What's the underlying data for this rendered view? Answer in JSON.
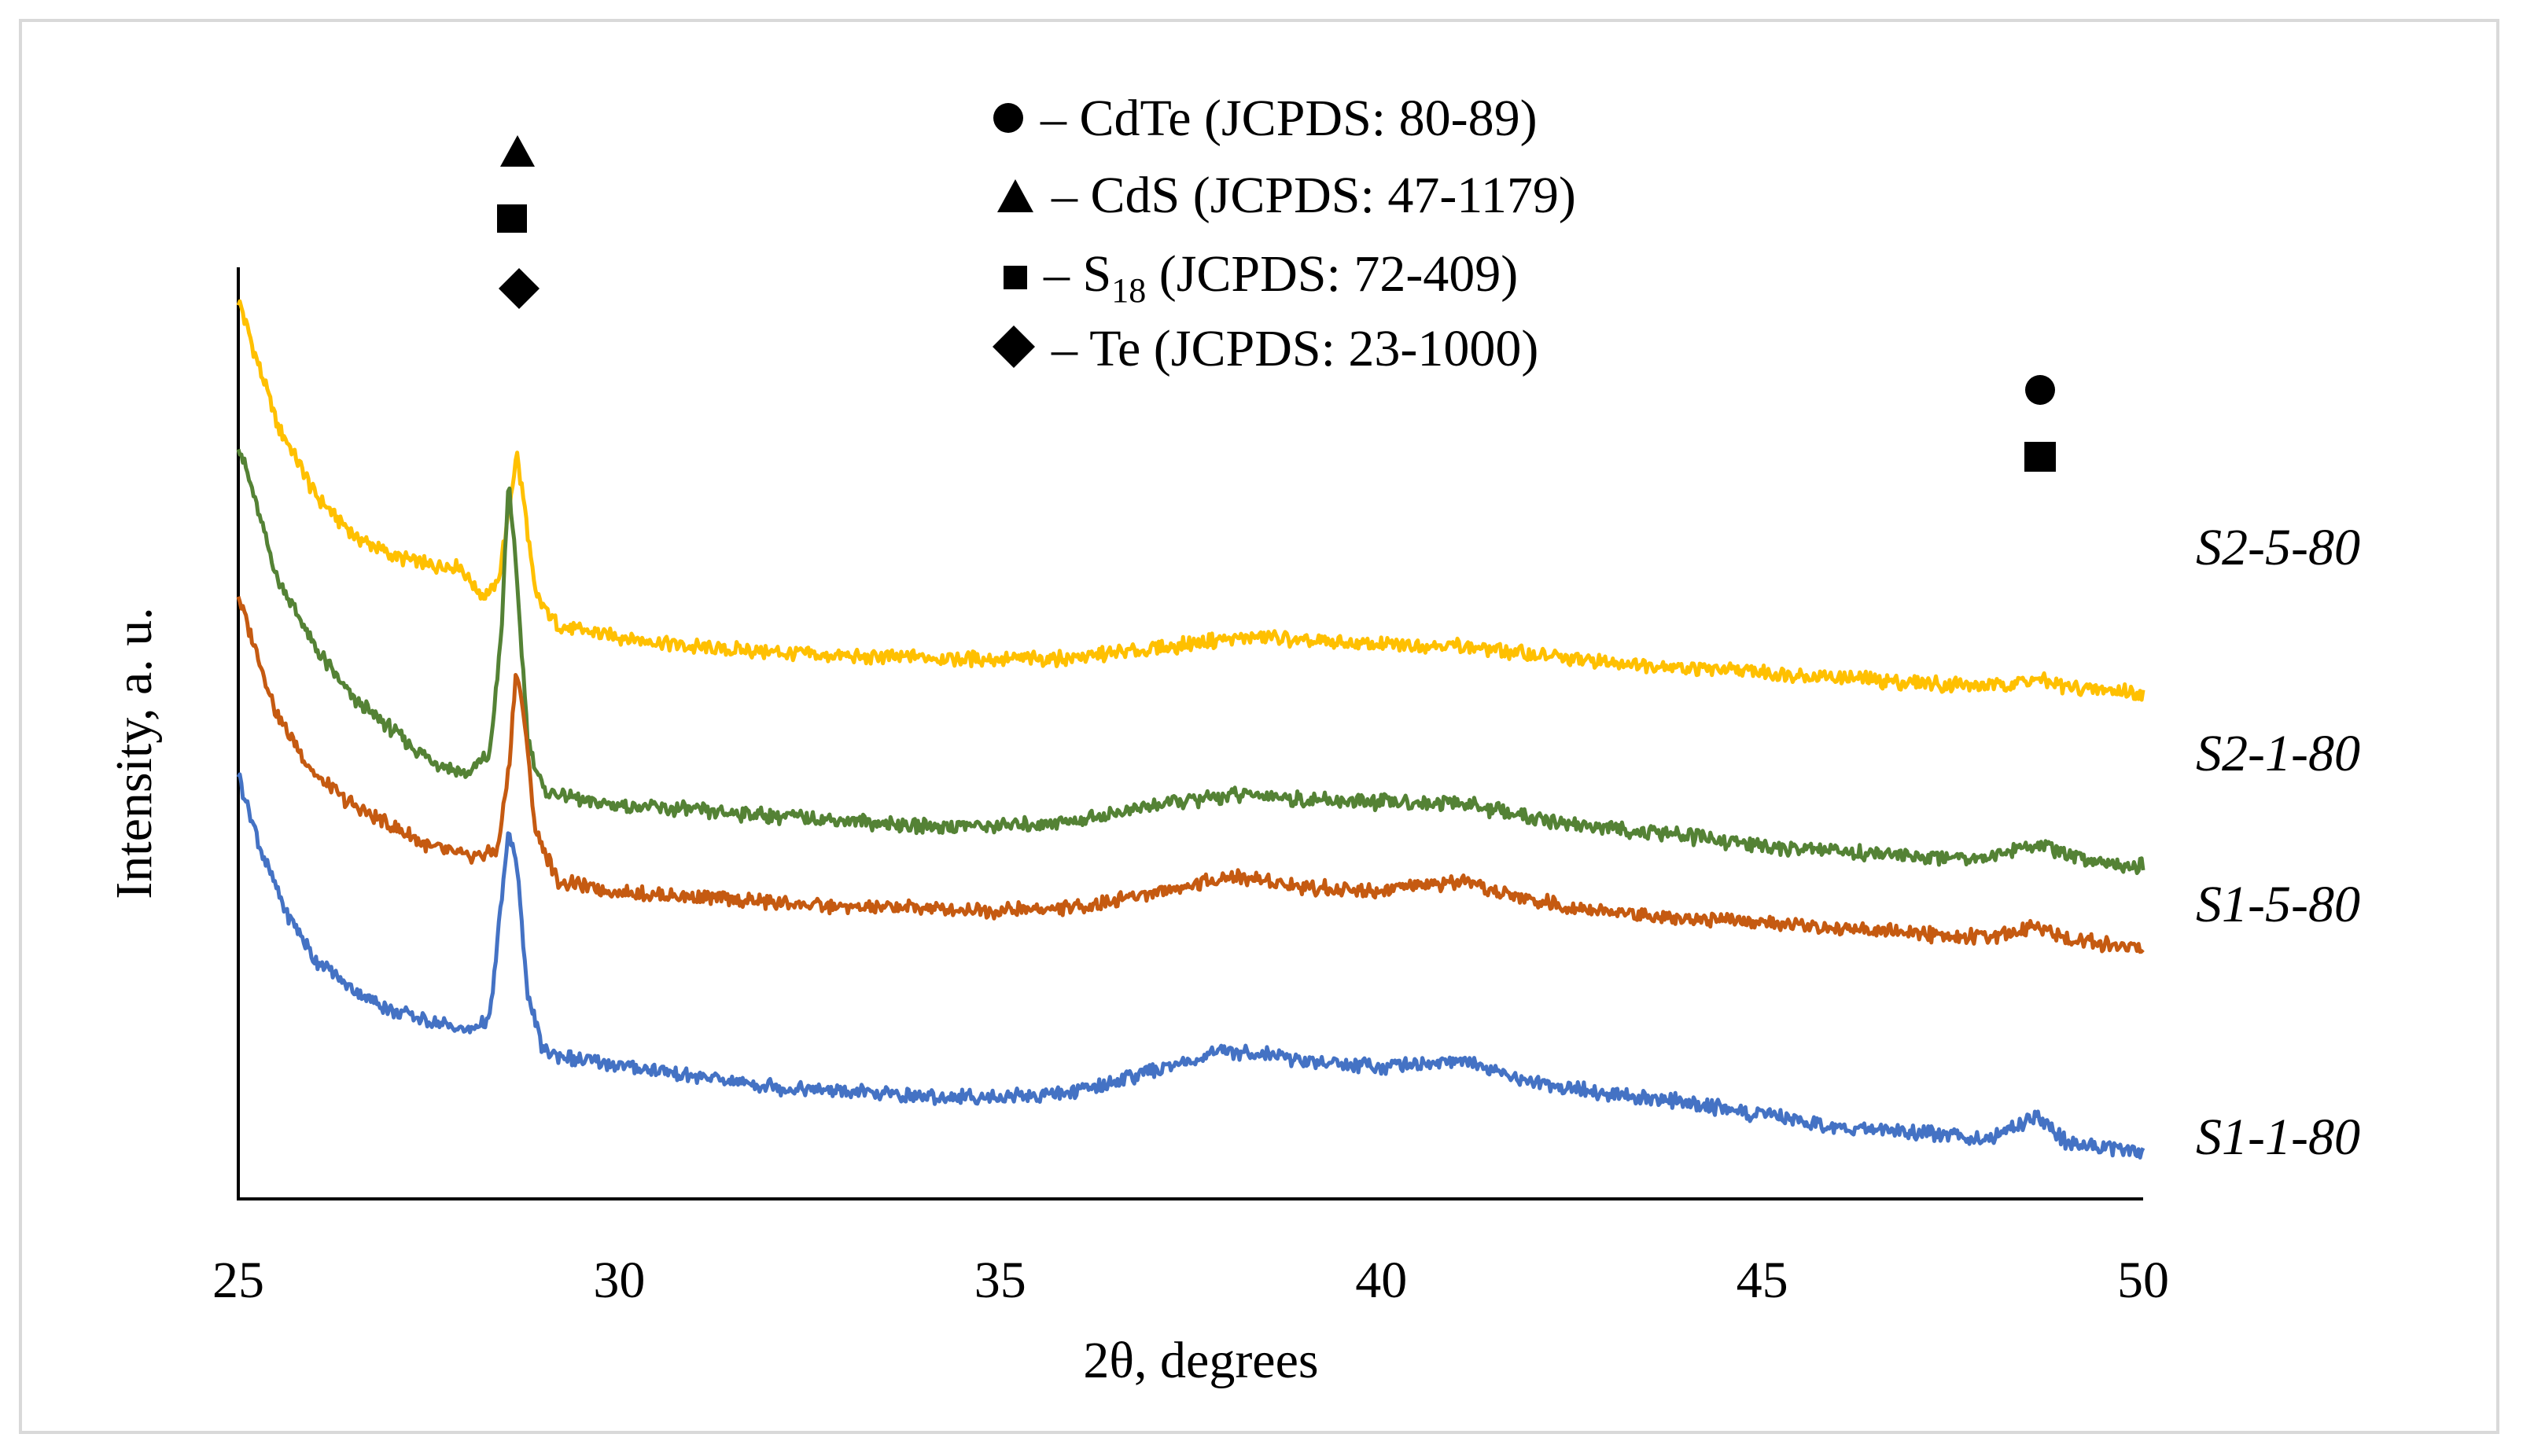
{
  "chart_data": {
    "type": "line",
    "title": "",
    "xlabel": "2θ, degrees",
    "ylabel": "Intensity, a. u.",
    "xlim": [
      25,
      50
    ],
    "xticks": [
      25,
      30,
      35,
      40,
      45,
      50
    ],
    "xtick_labels": [
      "25",
      "30",
      "35",
      "40",
      "45",
      "50"
    ],
    "y_ticks_shown": false,
    "series": [
      {
        "name": "S2-5-80",
        "color": "#FFC000",
        "points": [
          [
            25.0,
            8.8
          ],
          [
            25.5,
            7.6
          ],
          [
            26.0,
            6.9
          ],
          [
            26.5,
            6.5
          ],
          [
            27.0,
            6.3
          ],
          [
            27.5,
            6.2
          ],
          [
            27.9,
            6.2
          ],
          [
            28.2,
            5.9
          ],
          [
            28.4,
            6.0
          ],
          [
            28.55,
            6.7
          ],
          [
            28.65,
            7.3
          ],
          [
            28.75,
            6.8
          ],
          [
            28.9,
            5.9
          ],
          [
            29.2,
            5.6
          ],
          [
            30.0,
            5.5
          ],
          [
            31.0,
            5.4
          ],
          [
            32.0,
            5.35
          ],
          [
            33.0,
            5.3
          ],
          [
            34.0,
            5.3
          ],
          [
            35.0,
            5.28
          ],
          [
            36.0,
            5.3
          ],
          [
            37.0,
            5.38
          ],
          [
            38.0,
            5.48
          ],
          [
            38.5,
            5.5
          ],
          [
            39.0,
            5.45
          ],
          [
            40.0,
            5.42
          ],
          [
            41.0,
            5.42
          ],
          [
            42.0,
            5.32
          ],
          [
            43.0,
            5.25
          ],
          [
            44.0,
            5.2
          ],
          [
            45.0,
            5.15
          ],
          [
            46.0,
            5.1
          ],
          [
            47.0,
            5.05
          ],
          [
            48.0,
            5.02
          ],
          [
            48.6,
            5.08
          ],
          [
            49.0,
            5.0
          ],
          [
            50.0,
            4.95
          ]
        ]
      },
      {
        "name": "S2-1-80",
        "color": "#548235",
        "points": [
          [
            25.0,
            7.4
          ],
          [
            25.5,
            6.1
          ],
          [
            26.0,
            5.4
          ],
          [
            26.5,
            4.9
          ],
          [
            27.0,
            4.6
          ],
          [
            27.5,
            4.3
          ],
          [
            28.0,
            4.15
          ],
          [
            28.3,
            4.35
          ],
          [
            28.45,
            5.5
          ],
          [
            28.55,
            7.05
          ],
          [
            28.65,
            6.1
          ],
          [
            28.8,
            4.5
          ],
          [
            29.0,
            4.0
          ],
          [
            29.5,
            3.9
          ],
          [
            30.0,
            3.85
          ],
          [
            31.0,
            3.8
          ],
          [
            32.0,
            3.75
          ],
          [
            33.0,
            3.7
          ],
          [
            34.0,
            3.65
          ],
          [
            35.0,
            3.65
          ],
          [
            36.0,
            3.7
          ],
          [
            37.0,
            3.85
          ],
          [
            38.0,
            3.95
          ],
          [
            38.5,
            3.95
          ],
          [
            39.0,
            3.9
          ],
          [
            40.0,
            3.88
          ],
          [
            41.0,
            3.88
          ],
          [
            42.0,
            3.72
          ],
          [
            43.0,
            3.62
          ],
          [
            44.0,
            3.55
          ],
          [
            45.0,
            3.45
          ],
          [
            46.0,
            3.4
          ],
          [
            47.0,
            3.35
          ],
          [
            48.0,
            3.35
          ],
          [
            48.6,
            3.48
          ],
          [
            49.0,
            3.35
          ],
          [
            50.0,
            3.25
          ]
        ]
      },
      {
        "name": "S1-5-80",
        "color": "#C55A11",
        "points": [
          [
            25.0,
            5.9
          ],
          [
            25.5,
            4.75
          ],
          [
            26.0,
            4.15
          ],
          [
            26.5,
            3.85
          ],
          [
            27.0,
            3.65
          ],
          [
            27.5,
            3.45
          ],
          [
            28.0,
            3.35
          ],
          [
            28.4,
            3.4
          ],
          [
            28.55,
            4.2
          ],
          [
            28.65,
            5.2
          ],
          [
            28.75,
            4.7
          ],
          [
            28.9,
            3.6
          ],
          [
            29.2,
            3.1
          ],
          [
            30.0,
            3.0
          ],
          [
            31.0,
            2.95
          ],
          [
            32.0,
            2.9
          ],
          [
            33.0,
            2.85
          ],
          [
            34.0,
            2.85
          ],
          [
            35.0,
            2.82
          ],
          [
            36.0,
            2.85
          ],
          [
            37.0,
            3.0
          ],
          [
            38.0,
            3.15
          ],
          [
            38.5,
            3.12
          ],
          [
            39.0,
            3.05
          ],
          [
            40.0,
            3.02
          ],
          [
            41.0,
            3.1
          ],
          [
            42.0,
            2.92
          ],
          [
            43.0,
            2.8
          ],
          [
            44.0,
            2.75
          ],
          [
            45.0,
            2.7
          ],
          [
            46.0,
            2.65
          ],
          [
            47.0,
            2.6
          ],
          [
            48.0,
            2.55
          ],
          [
            48.6,
            2.68
          ],
          [
            49.0,
            2.55
          ],
          [
            50.0,
            2.45
          ]
        ]
      },
      {
        "name": "S1-1-80",
        "color": "#4472C4",
        "points": [
          [
            25.0,
            4.15
          ],
          [
            25.3,
            3.4
          ],
          [
            25.6,
            2.85
          ],
          [
            26.0,
            2.35
          ],
          [
            26.5,
            2.05
          ],
          [
            27.0,
            1.85
          ],
          [
            27.5,
            1.75
          ],
          [
            28.0,
            1.65
          ],
          [
            28.3,
            1.75
          ],
          [
            28.45,
            2.9
          ],
          [
            28.55,
            3.6
          ],
          [
            28.65,
            3.3
          ],
          [
            28.8,
            2.0
          ],
          [
            29.0,
            1.45
          ],
          [
            29.5,
            1.35
          ],
          [
            30.0,
            1.3
          ],
          [
            31.0,
            1.2
          ],
          [
            32.0,
            1.1
          ],
          [
            33.0,
            1.05
          ],
          [
            34.0,
            1.0
          ],
          [
            35.0,
            1.0
          ],
          [
            36.0,
            1.05
          ],
          [
            37.0,
            1.25
          ],
          [
            38.0,
            1.45
          ],
          [
            38.5,
            1.42
          ],
          [
            39.0,
            1.35
          ],
          [
            40.0,
            1.3
          ],
          [
            41.0,
            1.35
          ],
          [
            42.0,
            1.15
          ],
          [
            43.0,
            1.02
          ],
          [
            44.0,
            0.95
          ],
          [
            45.0,
            0.82
          ],
          [
            46.0,
            0.7
          ],
          [
            47.0,
            0.65
          ],
          [
            48.0,
            0.6
          ],
          [
            48.6,
            0.82
          ],
          [
            49.0,
            0.55
          ],
          [
            50.0,
            0.45
          ]
        ]
      }
    ],
    "series_labels": [
      "S2-5-80",
      "S2-1-80",
      "S1-5-80",
      "S1-1-80"
    ],
    "peak_markers": [
      {
        "x": 28.6,
        "symbols": [
          "triangle",
          "square",
          "diamond"
        ]
      },
      {
        "x": 48.6,
        "symbols": [
          "circle",
          "square"
        ]
      }
    ],
    "legend": {
      "placement": "top-center",
      "entries": [
        {
          "symbol": "circle",
          "text": "– CdTe (JCPDS: 80-89)"
        },
        {
          "symbol": "triangle",
          "text": "– CdS (JCPDS: 47-1179)"
        },
        {
          "symbol": "square",
          "text_before": "– S",
          "subscript": "18",
          "text_after": " (JCPDS: 72-409)"
        },
        {
          "symbol": "diamond",
          "text": "– Te (JCPDS: 23-1000)"
        }
      ]
    }
  }
}
